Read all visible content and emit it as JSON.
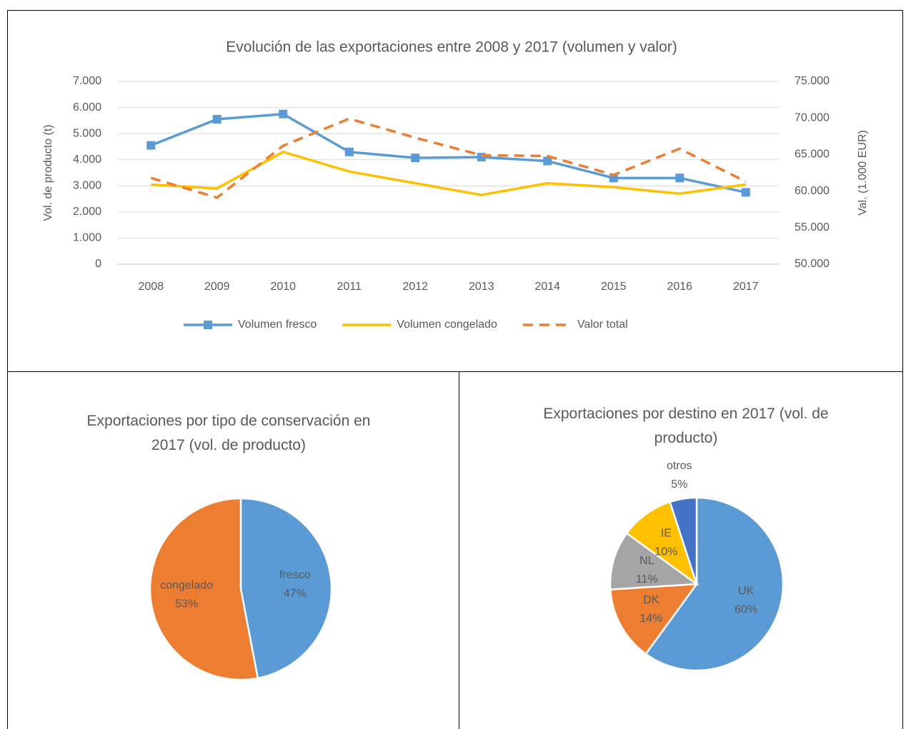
{
  "chart_data": [
    {
      "type": "line",
      "title": "Evolución de las exportaciones entre 2008 y 2017  (volumen y valor)",
      "ylabel": "Vol. de producto (t)",
      "y2label": "Val. (1.000 EUR)",
      "categories": [
        "2008",
        "2009",
        "2010",
        "2011",
        "2012",
        "2013",
        "2014",
        "2015",
        "2016",
        "2017"
      ],
      "series": [
        {
          "name": "Volumen fresco",
          "color": "#5b9bd5",
          "marker": "square",
          "values": [
            4550,
            5550,
            5750,
            4300,
            4070,
            4100,
            3950,
            3300,
            3300,
            2750
          ]
        },
        {
          "name": "Volumen congelado",
          "color": "#ffc000",
          "values": [
            3050,
            2900,
            4300,
            3550,
            3100,
            2650,
            3100,
            2950,
            2700,
            3050
          ]
        },
        {
          "name": "Valor total",
          "color": "#ed7d31",
          "dashed": true,
          "axis": "y2",
          "values": [
            61800,
            59100,
            66200,
            69900,
            67300,
            64900,
            64800,
            62200,
            65800,
            61300
          ]
        }
      ],
      "ylim": [
        0,
        7000
      ],
      "yticks": [
        0,
        {
          "value": 1000,
          "label": "1.000"
        },
        {
          "value": 2000,
          "label": "2.000"
        },
        {
          "value": 3000,
          "label": "3.000"
        },
        {
          "value": 4000,
          "label": "4.000"
        },
        {
          "value": 5000,
          "label": "5.000"
        },
        {
          "value": 6000,
          "label": "6.000"
        },
        {
          "value": 7000,
          "label": "7.000"
        }
      ],
      "y2lim": [
        50000,
        75000
      ],
      "y2ticks": [
        {
          "value": 50000,
          "label": "50.000"
        },
        {
          "value": 55000,
          "label": "55.000"
        },
        {
          "value": 60000,
          "label": "60.000"
        },
        {
          "value": 65000,
          "label": "65.000"
        },
        {
          "value": 70000,
          "label": "70.000"
        },
        {
          "value": 75000,
          "label": "75.000"
        }
      ],
      "grid": true,
      "legend": "bottom"
    },
    {
      "type": "pie",
      "title": "Exportaciones por tipo de conservación en 2017  (vol. de producto)",
      "categories": [
        "fresco",
        "congelado"
      ],
      "values": [
        47,
        53
      ],
      "value_labels": [
        "47%",
        "53%"
      ],
      "colors": [
        "#5b9bd5",
        "#ed7d31"
      ]
    },
    {
      "type": "pie",
      "title": "Exportaciones por destino en 2017 (vol. de producto)",
      "categories": [
        "UK",
        "DK",
        "NL",
        "IE",
        "otros"
      ],
      "values": [
        60,
        14,
        11,
        10,
        5
      ],
      "value_labels": [
        "60%",
        "14%",
        "11%",
        "10%",
        "5%"
      ],
      "colors": [
        "#5b9bd5",
        "#ed7d31",
        "#a5a5a5",
        "#ffc000",
        "#4472c4"
      ]
    }
  ]
}
